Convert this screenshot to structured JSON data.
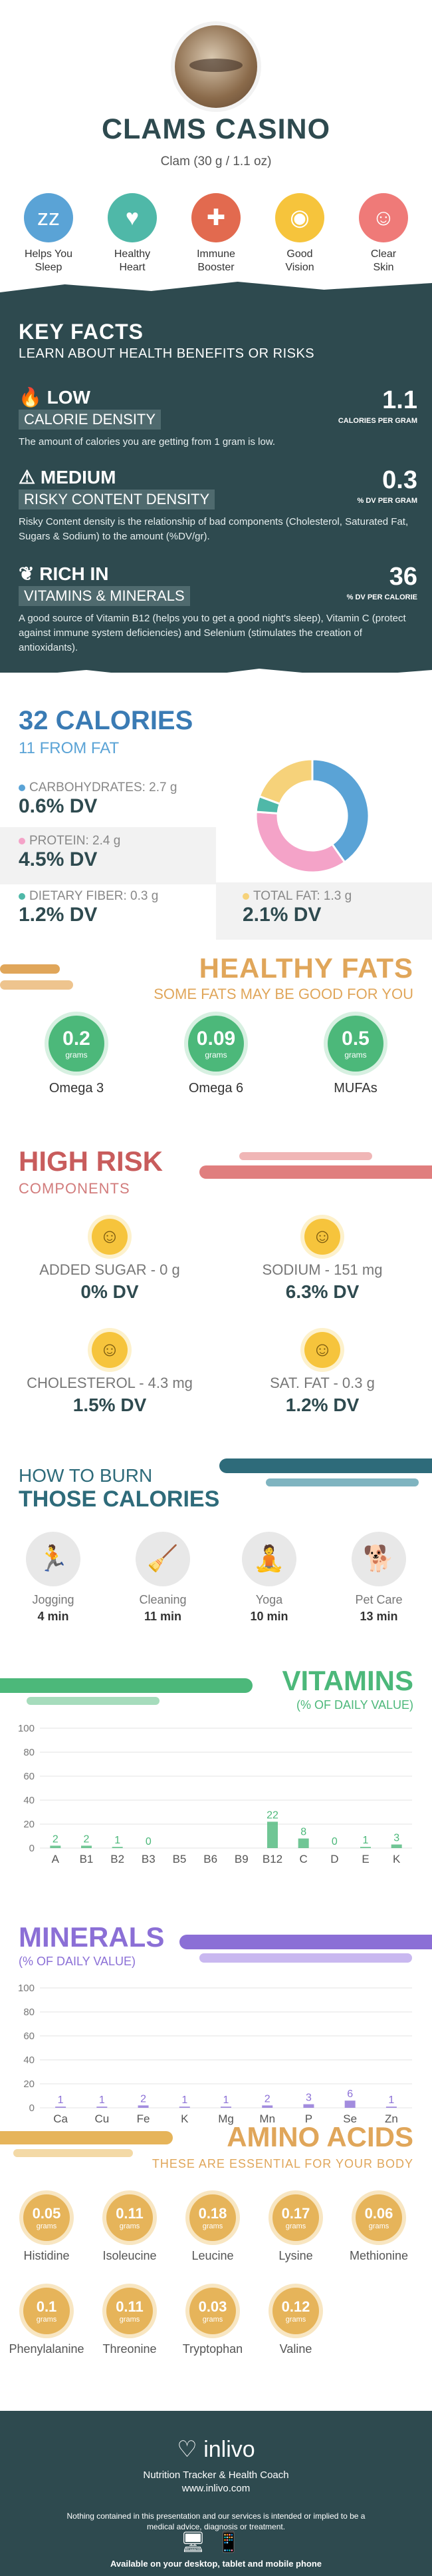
{
  "header": {
    "title": "CLAMS CASINO",
    "serving": "Clam (30 g / 1.1 oz)",
    "benefits": [
      {
        "label1": "Helps You",
        "label2": "Sleep",
        "icon": "sleep-icon",
        "color": "#5aa3d6",
        "glyph": "zz"
      },
      {
        "label1": "Healthy",
        "label2": "Heart",
        "icon": "heart-pulse-icon",
        "color": "#4fb8a8",
        "glyph": "♥"
      },
      {
        "label1": "Immune",
        "label2": "Booster",
        "icon": "shield-icon",
        "color": "#e26a4f",
        "glyph": "✚"
      },
      {
        "label1": "Good",
        "label2": "Vision",
        "icon": "eye-icon",
        "color": "#f6c43c",
        "glyph": "◉"
      },
      {
        "label1": "Clear",
        "label2": "Skin",
        "icon": "face-icon",
        "color": "#ef7a78",
        "glyph": "☺"
      }
    ]
  },
  "key_facts": {
    "title": "KEY FACTS",
    "subtitle": "LEARN ABOUT HEALTH BENEFITS OR RISKS",
    "facts": [
      {
        "level": "LOW",
        "tag": "CALORIE DENSITY",
        "value": "1.1",
        "unit": "CALORIES PER GRAM",
        "desc": "The amount of calories you are getting from 1 gram is low."
      },
      {
        "level": "MEDIUM",
        "tag": "RISKY CONTENT DENSITY",
        "value": "0.3",
        "unit": "% DV PER GRAM",
        "desc": "Risky Content density is the relationship of bad components (Cholesterol, Saturated Fat, Sugars & Sodium) to the amount (%DV/gr)."
      },
      {
        "level": "RICH  IN",
        "tag": "VITAMINS & MINERALS",
        "value": "36",
        "unit": "% DV PER CALORIE",
        "desc": "A good source of Vitamin B12 (helps you to get a good night's sleep), Vitamin C (protect against immune system deficiencies) and Selenium (stimulates the creation of antioxidants)."
      }
    ]
  },
  "calories": {
    "title": "32 CALORIES",
    "subtitle": "11 FROM FAT",
    "macros": [
      {
        "label": "CARBOHYDRATES: 2.7 g",
        "dv": "0.6% DV",
        "color": "#5aa3d6"
      },
      {
        "label": "PROTEIN: 2.4 g",
        "dv": "4.5% DV",
        "color": "#f4a3c8"
      },
      {
        "label": "DIETARY FIBER: 0.3 g",
        "dv": "1.2% DV",
        "color": "#4fb8a8"
      },
      {
        "label": "TOTAL FAT: 1.3 g",
        "dv": "2.1% DV",
        "color": "#f6d27a"
      }
    ]
  },
  "chart_data": [
    {
      "type": "pie",
      "title": "",
      "categories": [
        "CARBOHYDRATES",
        "PROTEIN",
        "DIETARY FIBER",
        "TOTAL FAT"
      ],
      "values": [
        2.7,
        2.4,
        0.3,
        1.3
      ],
      "colors": [
        "#5aa3d6",
        "#f4a3c8",
        "#4fb8a8",
        "#f6d27a"
      ]
    },
    {
      "type": "bar",
      "title": "VITAMINS",
      "subtitle": "(% OF DAILY VALUE)",
      "categories": [
        "A",
        "B1",
        "B2",
        "B3",
        "B5",
        "B6",
        "B9",
        "B12",
        "C",
        "D",
        "E",
        "K"
      ],
      "values": [
        2,
        2,
        1,
        0,
        0,
        0,
        0,
        22,
        8,
        0,
        1,
        3
      ],
      "labels": [
        "2",
        "2",
        "1",
        "0",
        "",
        "",
        "",
        "22",
        "8",
        "0",
        "1",
        "3"
      ],
      "ylim": [
        0,
        100
      ],
      "yticks": [
        "0",
        "20",
        "40",
        "60",
        "80",
        "100"
      ],
      "color": "#4cb87a",
      "grid": true
    },
    {
      "type": "bar",
      "title": "MINERALS",
      "subtitle": "(% OF DAILY VALUE)",
      "categories": [
        "Ca",
        "Cu",
        "Fe",
        "K",
        "Mg",
        "Mn",
        "P",
        "Se",
        "Zn"
      ],
      "values": [
        1,
        1,
        2,
        1,
        1,
        2,
        3,
        6,
        1
      ],
      "labels": [
        "1",
        "1",
        "2",
        "1",
        "1",
        "2",
        "3",
        "6",
        "1"
      ],
      "ylim": [
        0,
        100
      ],
      "yticks": [
        "0",
        "20",
        "40",
        "60",
        "80",
        "100"
      ],
      "color": "#8b6fd6",
      "grid": true
    }
  ],
  "healthy_fats": {
    "title": "HEALTHY FATS",
    "subtitle": "SOME FATS MAY BE GOOD FOR YOU",
    "unit": "grams",
    "items": [
      {
        "value": "0.2",
        "label": "Omega 3"
      },
      {
        "value": "0.09",
        "label": "Omega 6"
      },
      {
        "value": "0.5",
        "label": "MUFAs"
      }
    ]
  },
  "high_risk": {
    "title": "HIGH RISK",
    "subtitle": "COMPONENTS",
    "items": [
      {
        "label": "ADDED SUGAR - 0 g",
        "dv": "0% DV"
      },
      {
        "label": "SODIUM - 151 mg",
        "dv": "6.3% DV"
      },
      {
        "label": "CHOLESTEROL - 4.3 mg",
        "dv": "1.5% DV"
      },
      {
        "label": "SAT. FAT - 0.3 g",
        "dv": "1.2% DV"
      }
    ]
  },
  "burn": {
    "title1": "HOW TO BURN",
    "title2": "THOSE CALORIES",
    "items": [
      {
        "label": "Jogging",
        "value": "4 min",
        "icon": "jogging-icon",
        "glyph": "🏃"
      },
      {
        "label": "Cleaning",
        "value": "11 min",
        "icon": "cleaning-icon",
        "glyph": "🧹"
      },
      {
        "label": "Yoga",
        "value": "10 min",
        "icon": "yoga-icon",
        "glyph": "🧘"
      },
      {
        "label": "Pet Care",
        "value": "13 min",
        "icon": "pet-care-icon",
        "glyph": "🐕"
      }
    ]
  },
  "amino": {
    "title": "AMINO ACIDS",
    "subtitle": "THESE ARE ESSENTIAL FOR YOUR BODY",
    "unit": "grams",
    "items": [
      {
        "value": "0.05",
        "label": "Histidine"
      },
      {
        "value": "0.11",
        "label": "Isoleucine"
      },
      {
        "value": "0.18",
        "label": "Leucine"
      },
      {
        "value": "0.17",
        "label": "Lysine"
      },
      {
        "value": "0.06",
        "label": "Methionine"
      },
      {
        "value": "0.1",
        "label": "Phenylalanine"
      },
      {
        "value": "0.11",
        "label": "Threonine"
      },
      {
        "value": "0.03",
        "label": "Tryptophan"
      },
      {
        "value": "0.12",
        "label": "Valine"
      }
    ]
  },
  "footer": {
    "brand": "inlivo",
    "tagline": "Nutrition Tracker & Health Coach",
    "url": "www.inlivo.com",
    "disclaimer": "Nothing contained in this presentation and our services is intended or implied to be a medical advice, diagnosis or treatment.",
    "available": "Available on your desktop, tablet and mobile phone"
  }
}
